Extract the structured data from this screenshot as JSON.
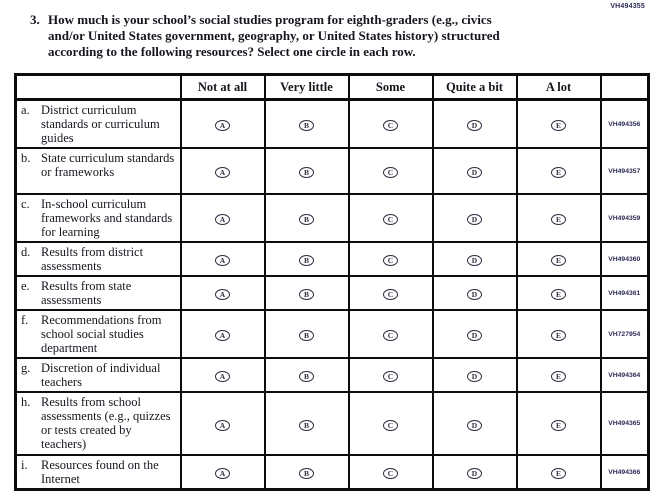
{
  "page": {
    "form_code_top_right": "VH494355",
    "question": {
      "number": "3.",
      "lines": [
        "How much is your school’s social studies program for eighth-graders (e.g., civics",
        "and/or United States government, geography, or United States history) structured"
      ],
      "line3_before": "according to the following resources? Select ",
      "line3_bold": "one",
      "line3_after": " circle in each row."
    },
    "table": {
      "option_headers": [
        "Not at all",
        "Very little",
        "Some",
        "Quite a bit",
        "A lot"
      ],
      "option_letters": [
        "A",
        "B",
        "C",
        "D",
        "E"
      ],
      "rows": [
        {
          "letter": "a.",
          "label": "District curriculum standards or curriculum guides",
          "code": "VH494356"
        },
        {
          "letter": "b.",
          "label": "State curriculum standards or frameworks",
          "code": "VH494357"
        },
        {
          "letter": "c.",
          "label": "In-school curriculum frameworks and standards for learning",
          "code": "VH494359"
        },
        {
          "letter": "d.",
          "label": "Results from district assessments",
          "code": "VH494360"
        },
        {
          "letter": "e.",
          "label": "Results from state assessments",
          "code": "VH494361"
        },
        {
          "letter": "f.",
          "label": "Recommendations from school social studies department",
          "code": "VH727954"
        },
        {
          "letter": "g.",
          "label": "Discretion of individual teachers",
          "code": "VH494364"
        },
        {
          "letter": "h.",
          "label": "Results from school assessments (e.g., quizzes or tests created by teachers)",
          "code": "VH494365"
        },
        {
          "letter": "i.",
          "label": "Resources found on the Internet",
          "code": "VH494366"
        }
      ]
    },
    "colors": {
      "text": "#16161f",
      "border": "#0d0d0d",
      "code_text": "#2b2b55"
    }
  }
}
